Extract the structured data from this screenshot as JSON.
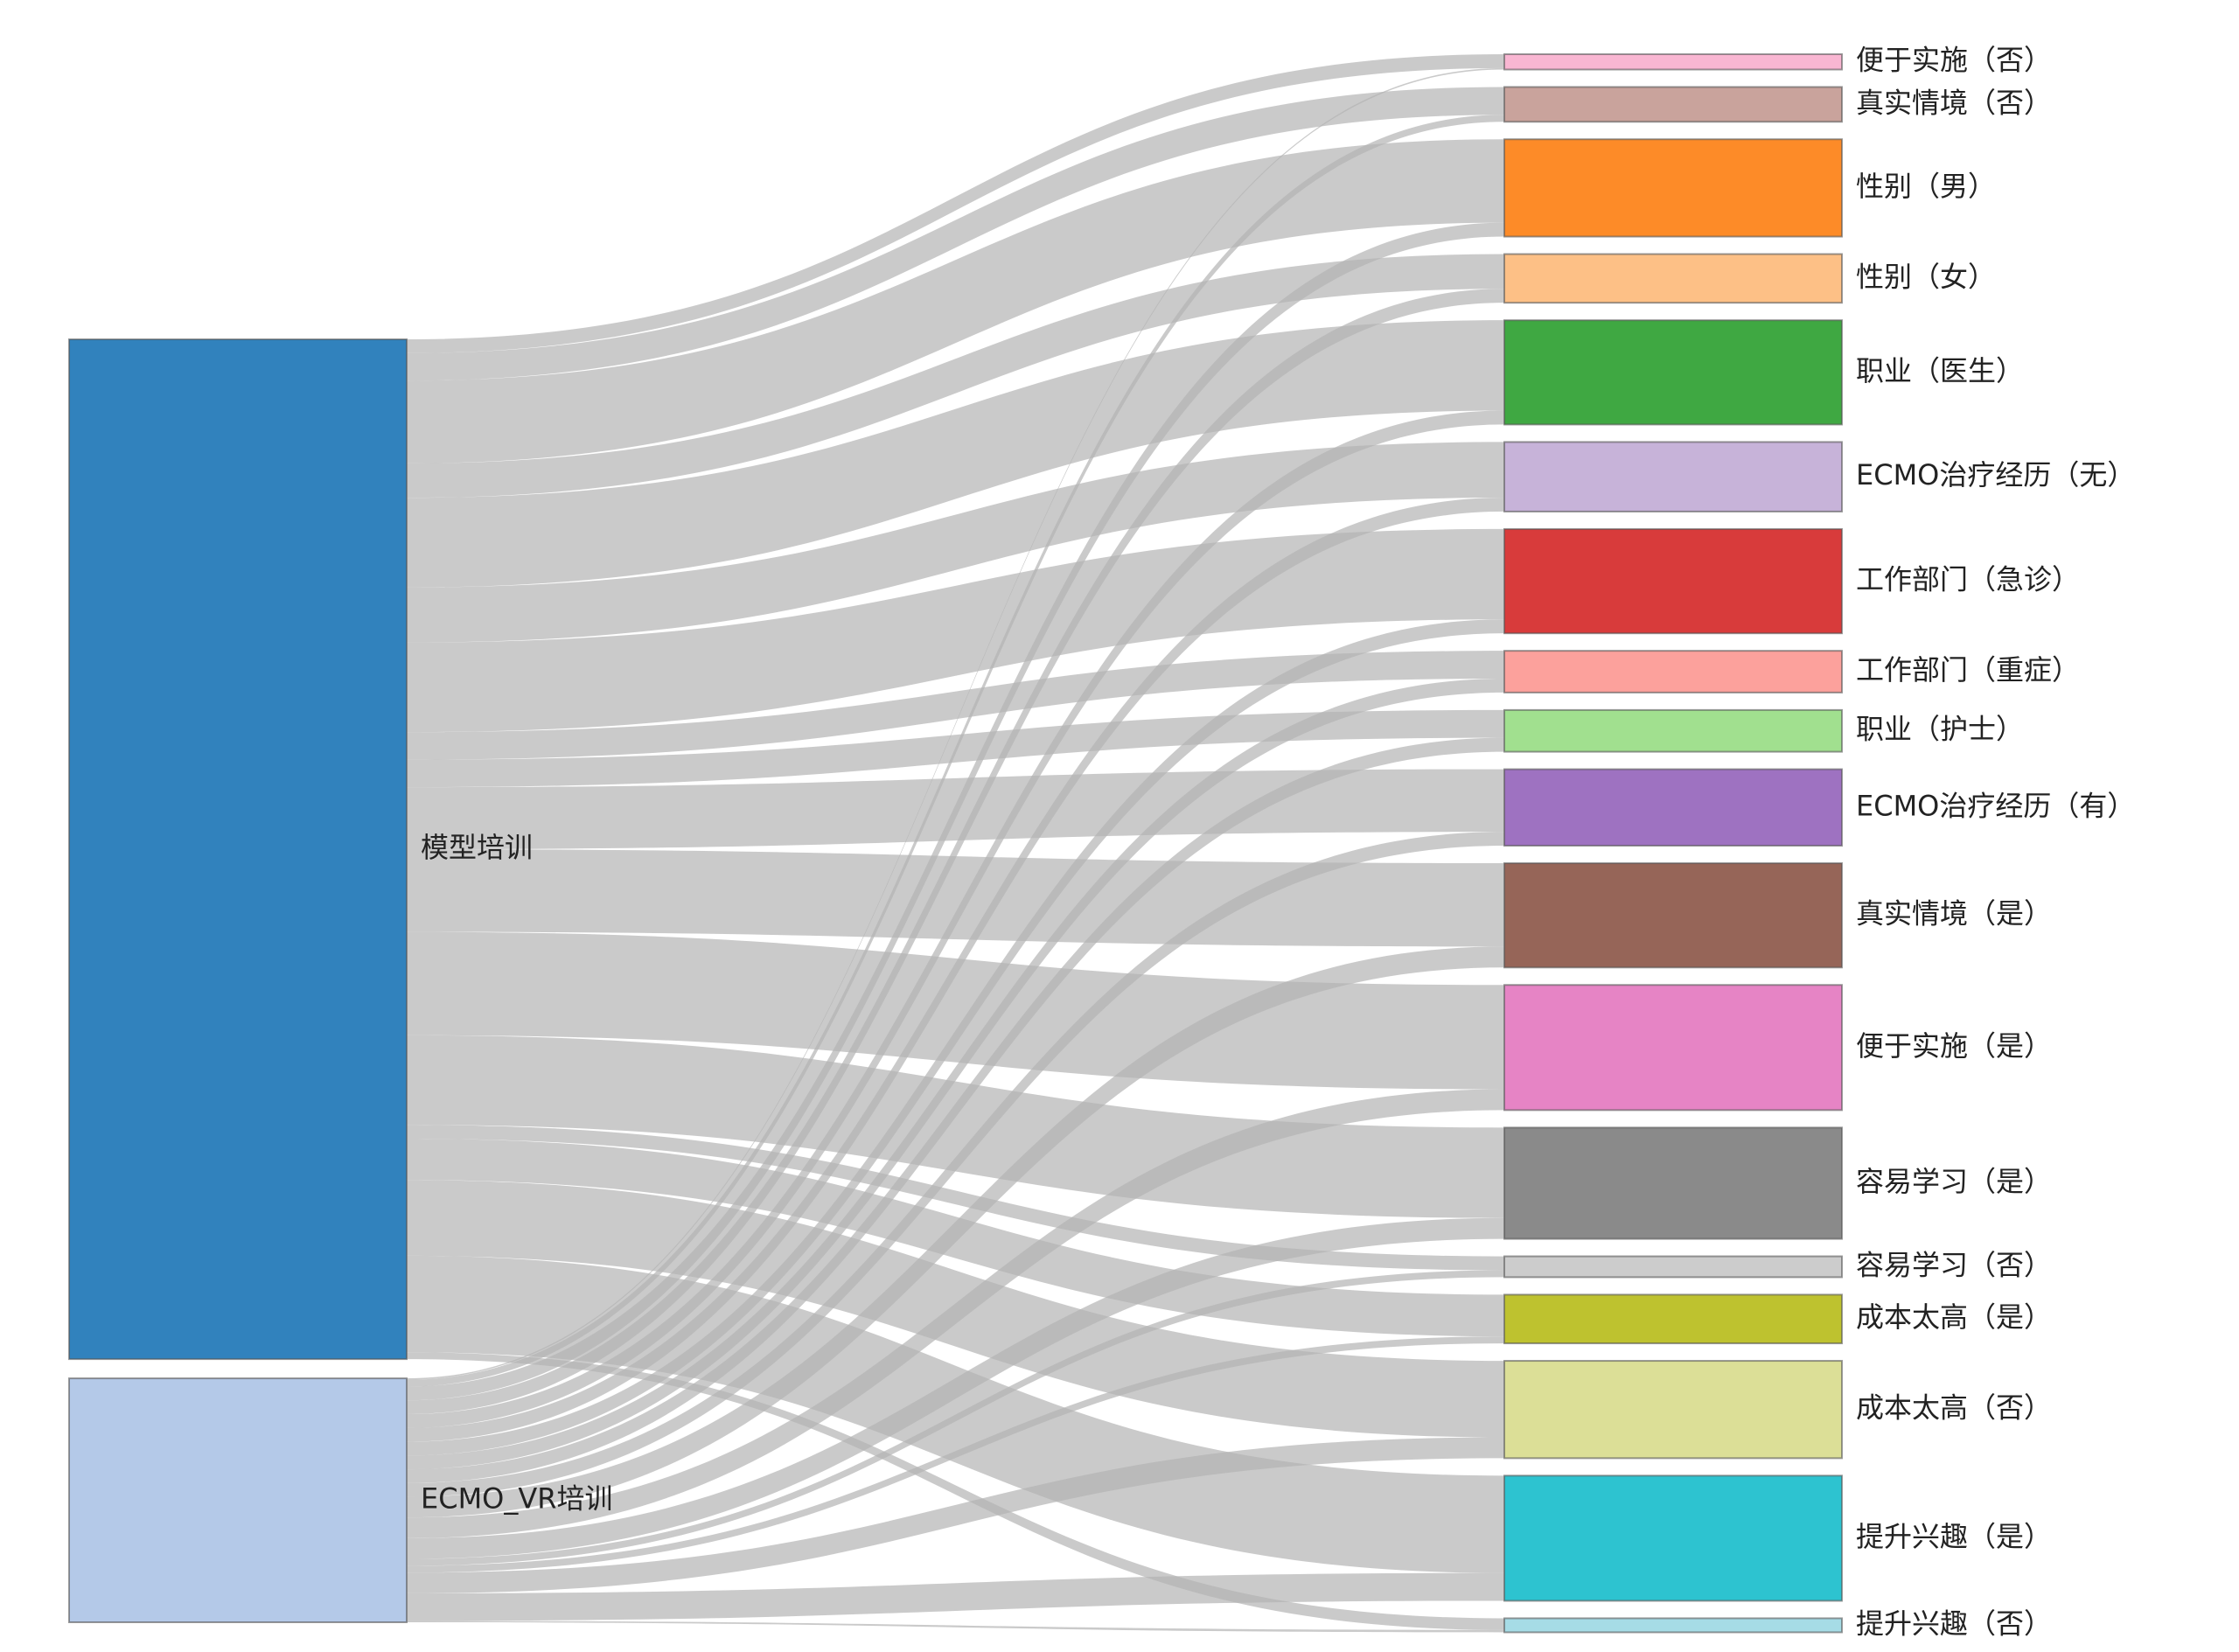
{
  "chart_data": {
    "type": "sankey",
    "sources": [
      {
        "id": "model",
        "label": "模型培训",
        "color": "#3182bd"
      },
      {
        "id": "vr",
        "label": "ECMO_VR培训",
        "color": "#b4c9e8"
      }
    ],
    "targets": [
      {
        "id": "t01",
        "label": "便于实施（否）",
        "color": "#f9b6d2"
      },
      {
        "id": "t02",
        "label": "真实情境（否）",
        "color": "#c9a39c"
      },
      {
        "id": "t03",
        "label": "性别（男）",
        "color": "#fd8b28"
      },
      {
        "id": "t04",
        "label": "性别（女）",
        "color": "#fdc086"
      },
      {
        "id": "t05",
        "label": "职业（医生）",
        "color": "#3fa842"
      },
      {
        "id": "t06",
        "label": "ECMO治疗经历（无）",
        "color": "#c7b3d9"
      },
      {
        "id": "t07",
        "label": "工作部门（急诊）",
        "color": "#d83b3b"
      },
      {
        "id": "t08",
        "label": "工作部门（重症）",
        "color": "#fca19c"
      },
      {
        "id": "t09",
        "label": "职业（护士）",
        "color": "#a1e08f"
      },
      {
        "id": "t10",
        "label": "ECMO治疗经历（有）",
        "color": "#9e72c1"
      },
      {
        "id": "t11",
        "label": "真实情境（是）",
        "color": "#966558"
      },
      {
        "id": "t12",
        "label": "便于实施（是）",
        "color": "#e684c5"
      },
      {
        "id": "t13",
        "label": "容易学习（是）",
        "color": "#8a8a8a"
      },
      {
        "id": "t14",
        "label": "容易学习（否）",
        "color": "#cccccc"
      },
      {
        "id": "t15",
        "label": "成本太高（是）",
        "color": "#bec22f"
      },
      {
        "id": "t16",
        "label": "成本太高（否）",
        "color": "#dcdf97"
      },
      {
        "id": "t17",
        "label": "提升兴趣（是）",
        "color": "#2dc3d0"
      },
      {
        "id": "t18",
        "label": "提升兴趣（否）",
        "color": "#a6dce6"
      }
    ],
    "flows": [
      {
        "source": "model",
        "target": "t01",
        "value": 2
      },
      {
        "source": "model",
        "target": "t02",
        "value": 4
      },
      {
        "source": "model",
        "target": "t03",
        "value": 12
      },
      {
        "source": "model",
        "target": "t04",
        "value": 5
      },
      {
        "source": "model",
        "target": "t05",
        "value": 13
      },
      {
        "source": "model",
        "target": "t06",
        "value": 8
      },
      {
        "source": "model",
        "target": "t07",
        "value": 13
      },
      {
        "source": "model",
        "target": "t08",
        "value": 4
      },
      {
        "source": "model",
        "target": "t09",
        "value": 4
      },
      {
        "source": "model",
        "target": "t10",
        "value": 9
      },
      {
        "source": "model",
        "target": "t11",
        "value": 12
      },
      {
        "source": "model",
        "target": "t12",
        "value": 15
      },
      {
        "source": "model",
        "target": "t13",
        "value": 13
      },
      {
        "source": "model",
        "target": "t14",
        "value": 2
      },
      {
        "source": "model",
        "target": "t15",
        "value": 6
      },
      {
        "source": "model",
        "target": "t16",
        "value": 11
      },
      {
        "source": "model",
        "target": "t17",
        "value": 14
      },
      {
        "source": "model",
        "target": "t18",
        "value": 1
      },
      {
        "source": "vr",
        "target": "t01",
        "value": 0.2
      },
      {
        "source": "vr",
        "target": "t02",
        "value": 1
      },
      {
        "source": "vr",
        "target": "t03",
        "value": 2
      },
      {
        "source": "vr",
        "target": "t04",
        "value": 2
      },
      {
        "source": "vr",
        "target": "t05",
        "value": 2
      },
      {
        "source": "vr",
        "target": "t06",
        "value": 2
      },
      {
        "source": "vr",
        "target": "t07",
        "value": 2
      },
      {
        "source": "vr",
        "target": "t08",
        "value": 2
      },
      {
        "source": "vr",
        "target": "t09",
        "value": 2
      },
      {
        "source": "vr",
        "target": "t10",
        "value": 2
      },
      {
        "source": "vr",
        "target": "t11",
        "value": 3
      },
      {
        "source": "vr",
        "target": "t12",
        "value": 3
      },
      {
        "source": "vr",
        "target": "t13",
        "value": 3
      },
      {
        "source": "vr",
        "target": "t14",
        "value": 1
      },
      {
        "source": "vr",
        "target": "t15",
        "value": 1
      },
      {
        "source": "vr",
        "target": "t16",
        "value": 3
      },
      {
        "source": "vr",
        "target": "t17",
        "value": 4
      },
      {
        "source": "vr",
        "target": "t18",
        "value": 0.2
      }
    ],
    "link_color": "#b4b4b4"
  }
}
